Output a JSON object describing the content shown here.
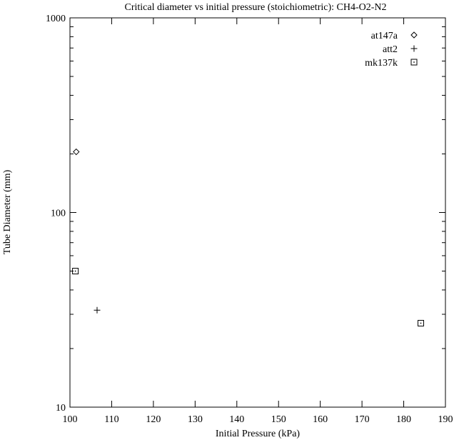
{
  "chart_data": {
    "type": "scatter",
    "title": "Critical diameter vs initial pressure (stoichiometric): CH4-O2-N2",
    "xlabel": "Initial Pressure (kPa)",
    "ylabel": "Tube Diameter (mm)",
    "xlim": [
      100,
      190
    ],
    "ylim": [
      10,
      1000
    ],
    "yscale": "log",
    "grid": false,
    "legend_position": "top-right",
    "x_ticks": [
      "100",
      "110",
      "120",
      "130",
      "140",
      "150",
      "160",
      "170",
      "180",
      "190"
    ],
    "y_ticks": [
      "10",
      "100",
      "1000"
    ],
    "series": [
      {
        "name": "at147a",
        "marker": "diamond",
        "points": [
          [
            101.5,
            205
          ]
        ]
      },
      {
        "name": "att2",
        "marker": "plus",
        "points": [
          [
            106.5,
            31.5
          ]
        ]
      },
      {
        "name": "mk137k",
        "marker": "square-dot",
        "points": [
          [
            101.3,
            50
          ],
          [
            184.1,
            27
          ]
        ]
      }
    ]
  }
}
